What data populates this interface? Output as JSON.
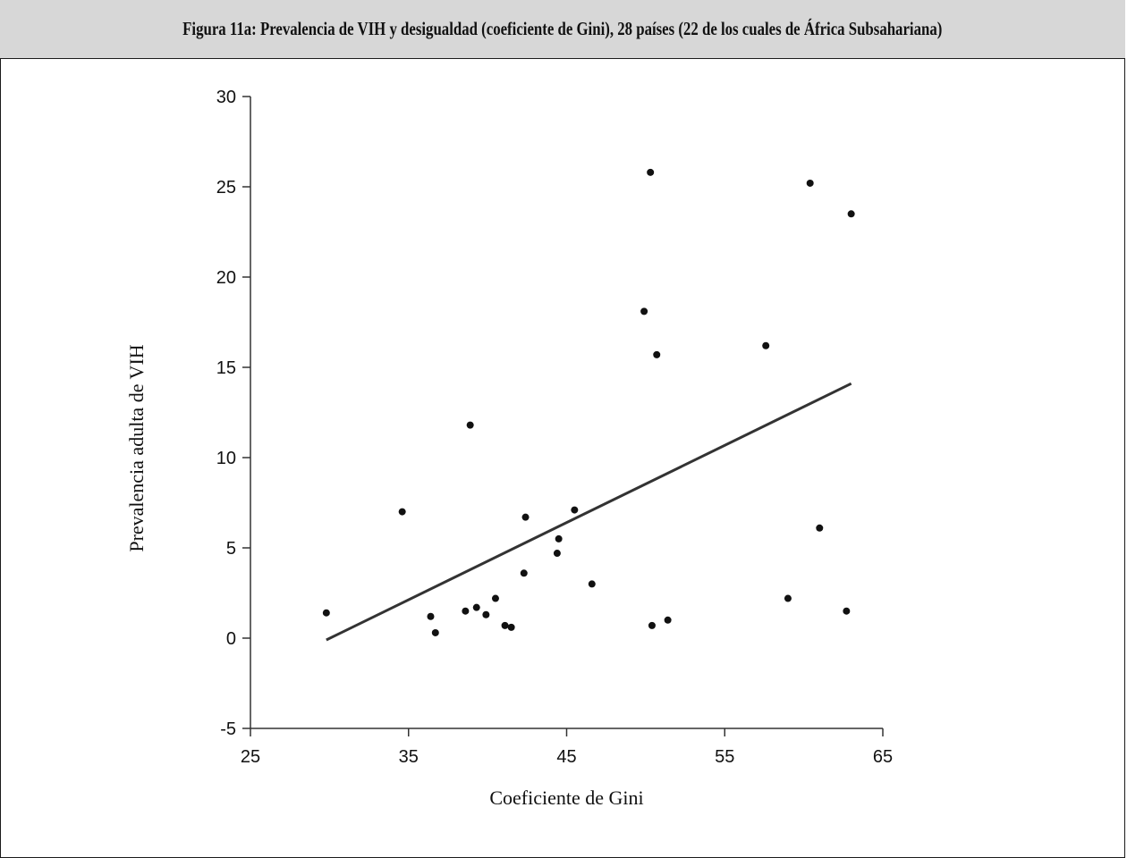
{
  "figure": {
    "title": "Figura 11a: Prevalencia de VIH y desigualdad (coeficiente de Gini), 28 países (22 de los cuales de África Subsahariana)"
  },
  "chart_data": {
    "type": "scatter",
    "title": "Figura 11a: Prevalencia de VIH y desigualdad (coeficiente de Gini), 28 países (22 de los cuales de África Subsahariana)",
    "xlabel": "Coeficiente de Gini",
    "ylabel": "Prevalencia adulta de VIH",
    "xlim": [
      25,
      65
    ],
    "ylim": [
      -5,
      30
    ],
    "xticks": [
      "25",
      "35",
      "45",
      "55",
      "65"
    ],
    "yticks": [
      "-5",
      "0",
      "5",
      "10",
      "15",
      "20",
      "25",
      "30"
    ],
    "grid": false,
    "legend": "none",
    "points": [
      {
        "x": 29.8,
        "y": 1.4
      },
      {
        "x": 34.6,
        "y": 7.0
      },
      {
        "x": 36.4,
        "y": 1.2
      },
      {
        "x": 36.7,
        "y": 0.3
      },
      {
        "x": 38.6,
        "y": 1.5
      },
      {
        "x": 38.9,
        "y": 11.8
      },
      {
        "x": 39.3,
        "y": 1.7
      },
      {
        "x": 39.9,
        "y": 1.3
      },
      {
        "x": 40.5,
        "y": 2.2
      },
      {
        "x": 41.1,
        "y": 0.7
      },
      {
        "x": 41.5,
        "y": 0.6
      },
      {
        "x": 42.3,
        "y": 3.6
      },
      {
        "x": 42.4,
        "y": 6.7
      },
      {
        "x": 44.4,
        "y": 4.7
      },
      {
        "x": 44.5,
        "y": 5.5
      },
      {
        "x": 45.5,
        "y": 7.1
      },
      {
        "x": 46.6,
        "y": 3.0
      },
      {
        "x": 49.9,
        "y": 18.1
      },
      {
        "x": 50.3,
        "y": 25.8
      },
      {
        "x": 50.4,
        "y": 0.7
      },
      {
        "x": 50.7,
        "y": 15.7
      },
      {
        "x": 51.4,
        "y": 1.0
      },
      {
        "x": 57.6,
        "y": 16.2
      },
      {
        "x": 59.0,
        "y": 2.2
      },
      {
        "x": 60.4,
        "y": 25.2
      },
      {
        "x": 61.0,
        "y": 6.1
      },
      {
        "x": 62.7,
        "y": 1.5
      },
      {
        "x": 63.0,
        "y": 23.5
      }
    ],
    "trendline": {
      "x": [
        29.8,
        63.0
      ],
      "y": [
        -0.1,
        14.1
      ]
    },
    "colors": {
      "points": "#111111",
      "trendline": "#333333",
      "axes": "#333333"
    }
  }
}
